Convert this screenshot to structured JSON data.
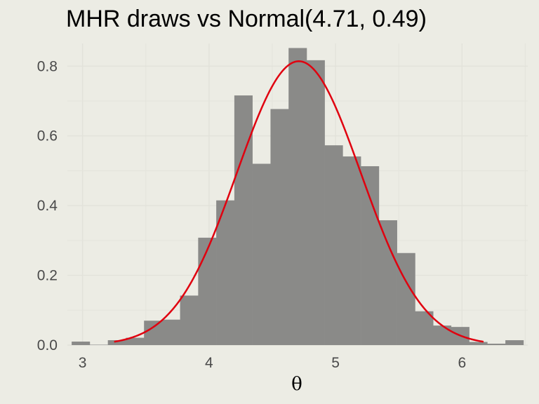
{
  "chart_data": {
    "type": "bar",
    "title": "MHR draws vs Normal(4.71, 0.49)",
    "xlabel": "θ",
    "ylabel": "",
    "xlim": [
      2.88,
      6.52
    ],
    "ylim": [
      0,
      0.865
    ],
    "grid": true,
    "legend": "none",
    "x_ticks": [
      3,
      4,
      5,
      6
    ],
    "x_tick_labels": [
      "3",
      "4",
      "5",
      "6"
    ],
    "y_ticks": [
      0,
      0.2,
      0.4,
      0.6,
      0.8
    ],
    "y_tick_labels": [
      "0.0",
      "0.2",
      "0.4",
      "0.6",
      "0.8"
    ],
    "bin_width": 0.143,
    "bins": {
      "start": [
        2.914,
        3.057,
        3.2,
        3.343,
        3.486,
        3.629,
        3.771,
        3.914,
        4.057,
        4.2,
        4.343,
        4.486,
        4.629,
        4.771,
        4.914,
        5.057,
        5.2,
        5.343,
        5.486,
        5.629,
        5.771,
        5.914,
        6.057,
        6.2,
        6.343
      ],
      "density": [
        0.01,
        0.001,
        0.014,
        0.021,
        0.07,
        0.073,
        0.142,
        0.308,
        0.415,
        0.716,
        0.52,
        0.677,
        0.852,
        0.817,
        0.573,
        0.541,
        0.513,
        0.358,
        0.264,
        0.097,
        0.056,
        0.052,
        0.009,
        0.004,
        0.014
      ]
    },
    "series": [
      {
        "type": "bar",
        "values_key": "bins",
        "color": "#8a8a88"
      },
      {
        "type": "line",
        "mean": 4.71,
        "sd": 0.49,
        "x_range": [
          3.25,
          6.17
        ],
        "color": "#e0000f"
      }
    ]
  }
}
